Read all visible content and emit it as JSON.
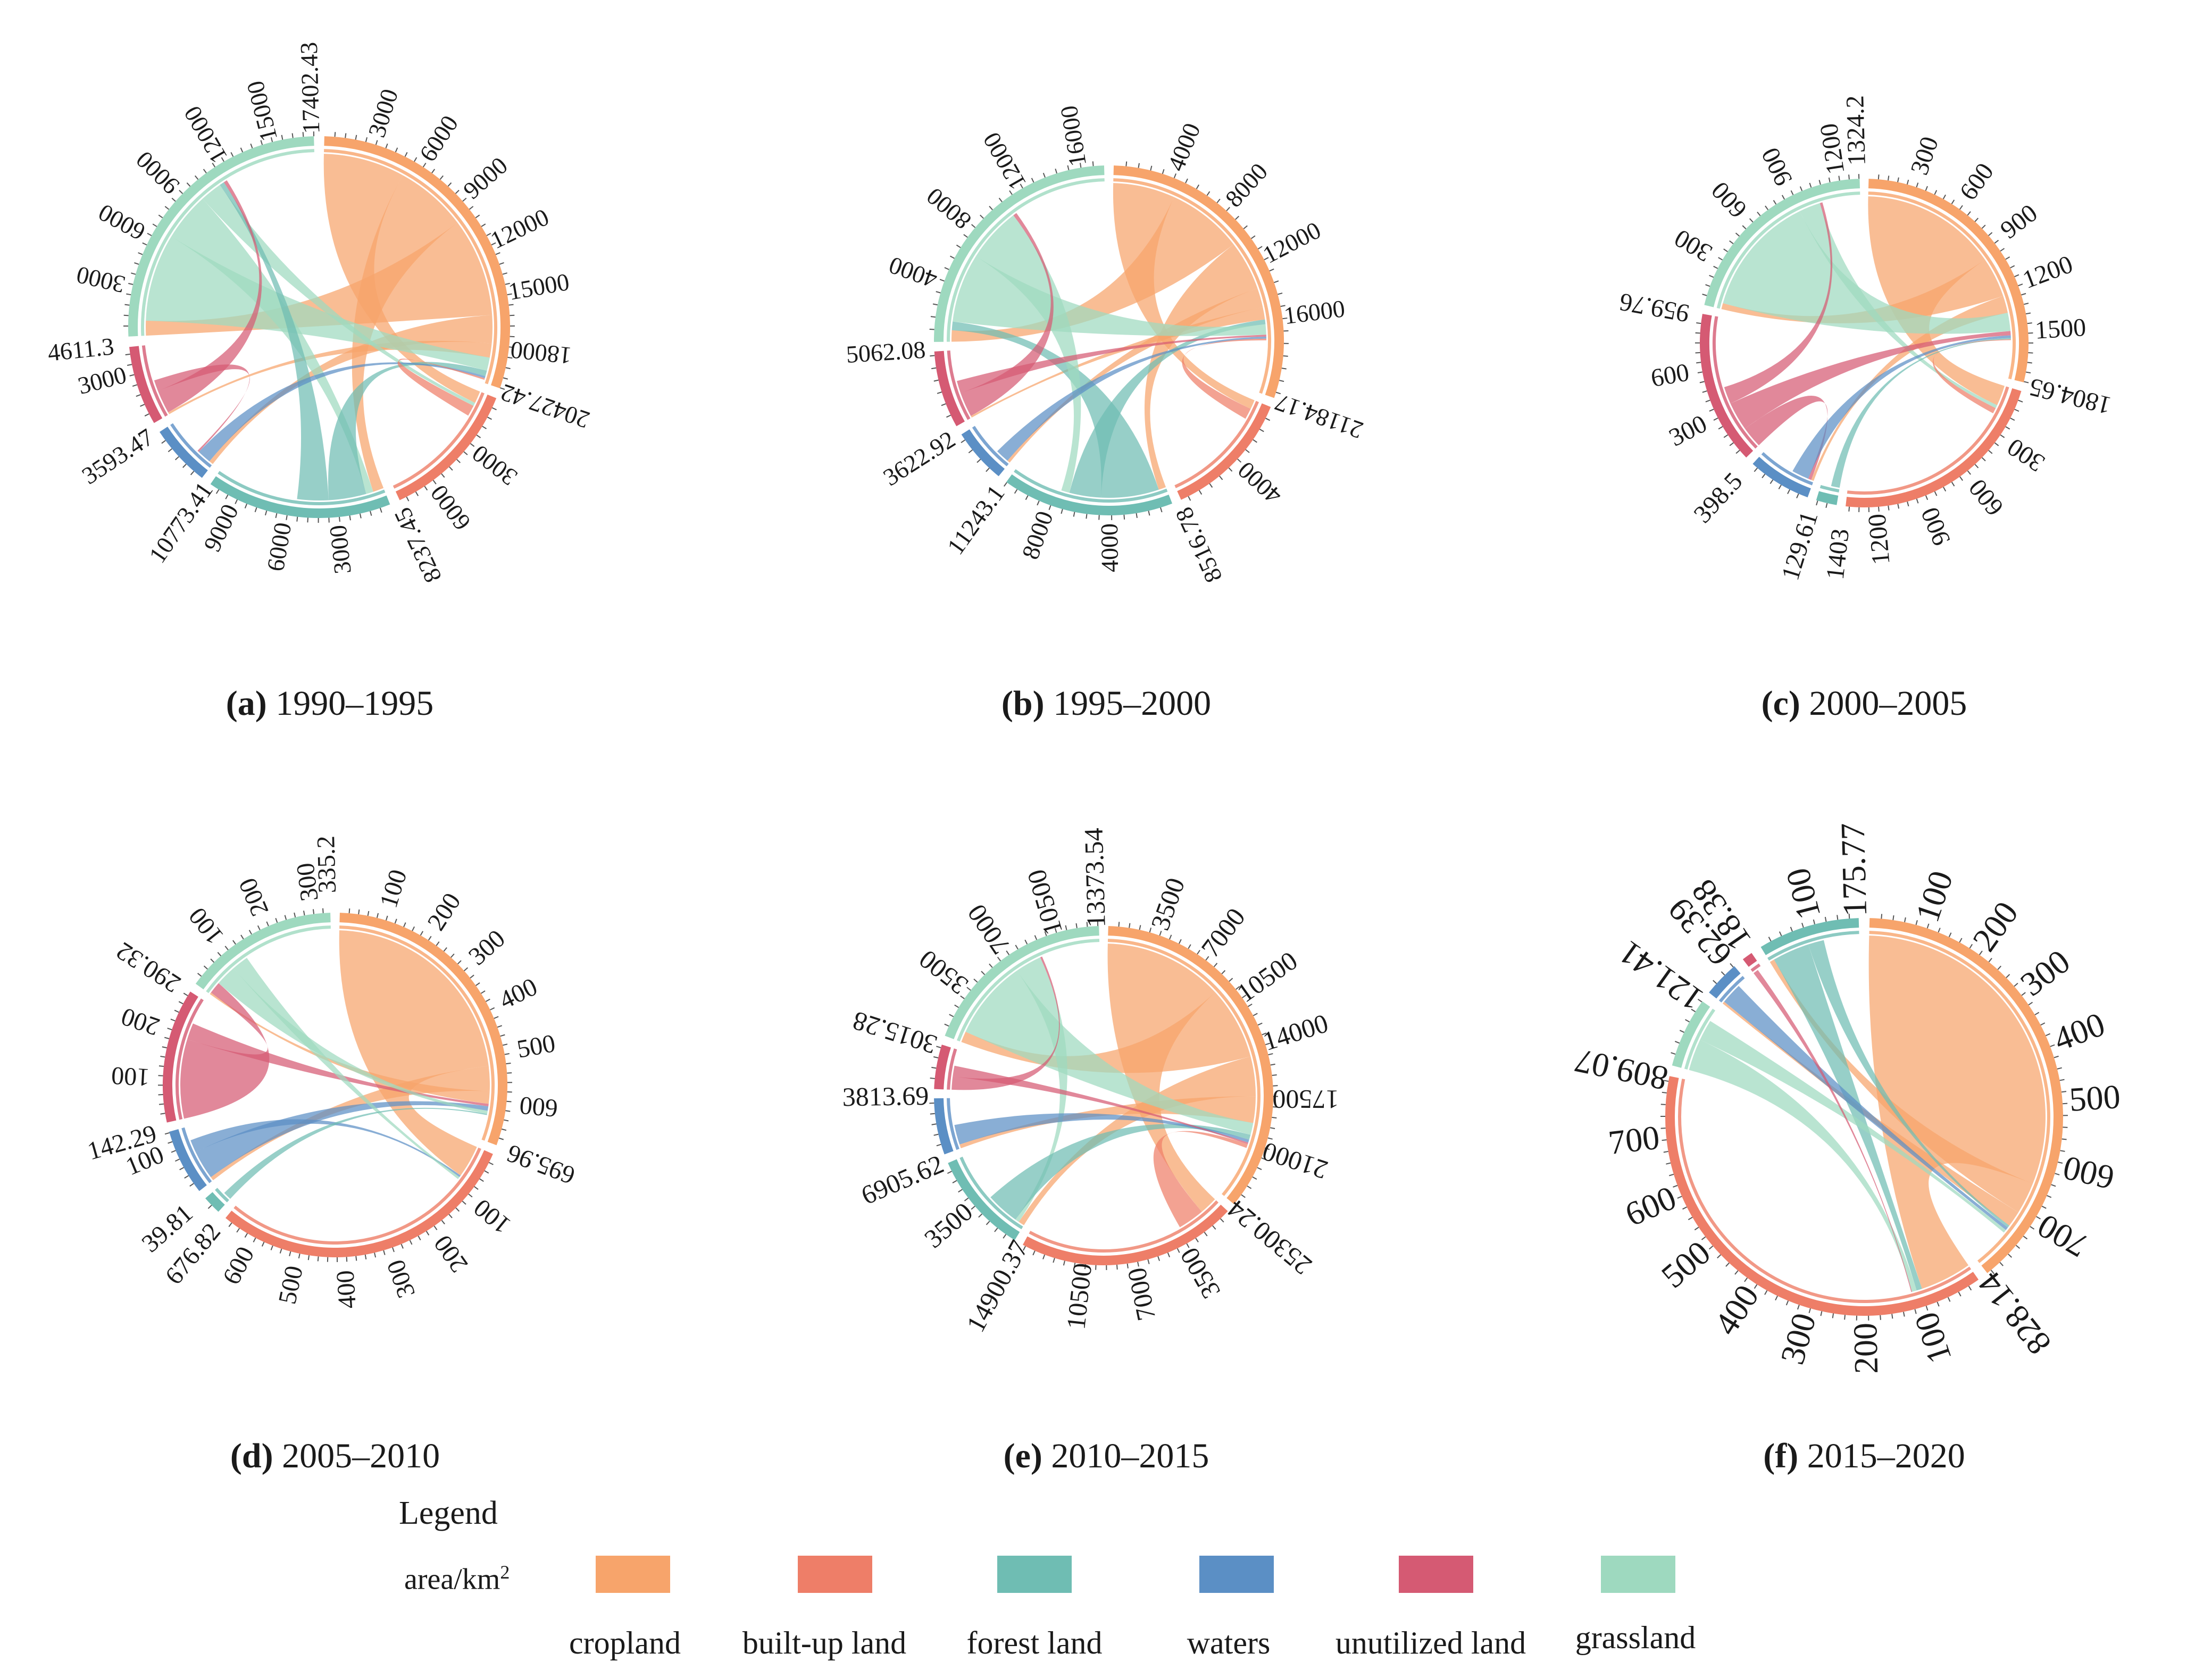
{
  "categories": [
    "cropland",
    "built-up land",
    "forest land",
    "waters",
    "unutilized land",
    "grassland"
  ],
  "colors": {
    "cropland": "#F7A46B",
    "built-up land": "#EE7E68",
    "forest land": "#6FBDB3",
    "waters": "#5B8FC5",
    "unutilized land": "#D55A73",
    "grassland": "#9ED9BF"
  },
  "legend": {
    "title": "Legend",
    "unit_prefix": "area/km",
    "unit_sup": "2"
  },
  "chart_data": [
    {
      "type": "chord",
      "panel": "(a)",
      "period": "1990–1995",
      "order": [
        "cropland",
        "built-up land",
        "forest land",
        "waters",
        "unutilized land",
        "grassland"
      ],
      "totals": [
        20427.42,
        8237.45,
        10773.41,
        3593.47,
        4611.3,
        17402.43
      ],
      "total_labels": [
        "20427.42",
        "8237.45",
        "10773.41",
        "3593.47",
        "4611.3",
        "17402.43"
      ],
      "tick_step": 3000,
      "flows": [
        {
          "from": "cropland",
          "to": "built-up land",
          "value": 5200
        },
        {
          "from": "cropland",
          "to": "forest land",
          "value": 4600
        },
        {
          "from": "cropland",
          "to": "grassland",
          "value": 6300
        },
        {
          "from": "cropland",
          "to": "waters",
          "value": 1800
        },
        {
          "from": "cropland",
          "to": "unutilized land",
          "value": 900
        },
        {
          "from": "grassland",
          "to": "cropland",
          "value": 5600
        },
        {
          "from": "grassland",
          "to": "forest land",
          "value": 3100
        },
        {
          "from": "grassland",
          "to": "built-up land",
          "value": 1400
        },
        {
          "from": "forest land",
          "to": "cropland",
          "value": 2400
        },
        {
          "from": "forest land",
          "to": "grassland",
          "value": 2000
        },
        {
          "from": "waters",
          "to": "cropland",
          "value": 900
        },
        {
          "from": "unutilized land",
          "to": "grassland",
          "value": 1500
        },
        {
          "from": "unutilized land",
          "to": "waters",
          "value": 700
        },
        {
          "from": "built-up land",
          "to": "cropland",
          "value": 700
        }
      ]
    },
    {
      "type": "chord",
      "panel": "(b)",
      "period": "1995–2000",
      "order": [
        "cropland",
        "built-up land",
        "forest land",
        "waters",
        "unutilized land",
        "grassland"
      ],
      "totals": [
        21184.17,
        8516.78,
        11243.1,
        3622.92,
        5062.08,
        17500
      ],
      "total_labels": [
        "21184.17",
        "8516.78",
        "11243.1",
        "3622.92",
        "5062.08",
        ""
      ],
      "tick_step": 4000,
      "flows": [
        {
          "from": "cropland",
          "to": "built-up land",
          "value": 4500
        },
        {
          "from": "cropland",
          "to": "grassland",
          "value": 5500
        },
        {
          "from": "cropland",
          "to": "forest land",
          "value": 3600
        },
        {
          "from": "cropland",
          "to": "waters",
          "value": 1400
        },
        {
          "from": "cropland",
          "to": "unutilized land",
          "value": 900
        },
        {
          "from": "forest land",
          "to": "grassland",
          "value": 4200
        },
        {
          "from": "forest land",
          "to": "cropland",
          "value": 2300
        },
        {
          "from": "grassland",
          "to": "cropland",
          "value": 5000
        },
        {
          "from": "grassland",
          "to": "forest land",
          "value": 4000
        },
        {
          "from": "unutilized land",
          "to": "grassland",
          "value": 1800
        },
        {
          "from": "unutilized land",
          "to": "cropland",
          "value": 900
        },
        {
          "from": "waters",
          "to": "cropland",
          "value": 1000
        },
        {
          "from": "built-up land",
          "to": "cropland",
          "value": 800
        }
      ]
    },
    {
      "type": "chord",
      "panel": "(c)",
      "period": "2000–2005",
      "order": [
        "cropland",
        "built-up land",
        "forest land",
        "waters",
        "unutilized land",
        "grassland"
      ],
      "totals": [
        1804.65,
        1403,
        129.61,
        398.5,
        959.76,
        1324.2
      ],
      "total_labels": [
        "1804.65",
        "1403",
        "129.61",
        "398.5",
        "959.76",
        "1324.2"
      ],
      "tick_step": 300,
      "flows": [
        {
          "from": "cropland",
          "to": "built-up land",
          "value": 950
        },
        {
          "from": "cropland",
          "to": "grassland",
          "value": 280
        },
        {
          "from": "cropland",
          "to": "waters",
          "value": 120
        },
        {
          "from": "grassland",
          "to": "cropland",
          "value": 850
        },
        {
          "from": "grassland",
          "to": "built-up land",
          "value": 150
        },
        {
          "from": "unutilized land",
          "to": "waters",
          "value": 150
        },
        {
          "from": "unutilized land",
          "to": "cropland",
          "value": 200
        },
        {
          "from": "unutilized land",
          "to": "grassland",
          "value": 120
        },
        {
          "from": "waters",
          "to": "cropland",
          "value": 120
        },
        {
          "from": "forest land",
          "to": "cropland",
          "value": 60
        },
        {
          "from": "built-up land",
          "to": "cropland",
          "value": 40
        }
      ]
    },
    {
      "type": "chord",
      "panel": "(d)",
      "period": "2005–2010",
      "order": [
        "cropland",
        "built-up land",
        "forest land",
        "waters",
        "unutilized land",
        "grassland"
      ],
      "totals": [
        695.96,
        676.82,
        39.81,
        142.29,
        290.32,
        335.2
      ],
      "total_labels": [
        "695.96",
        "676.82",
        "39.81",
        "142.29",
        "290.32",
        "335.2"
      ],
      "tick_step": 100,
      "flows": [
        {
          "from": "cropland",
          "to": "built-up land",
          "value": 520
        },
        {
          "from": "cropland",
          "to": "waters",
          "value": 60
        },
        {
          "from": "cropland",
          "to": "grassland",
          "value": 30
        },
        {
          "from": "unutilized land",
          "to": "grassland",
          "value": 190
        },
        {
          "from": "unutilized land",
          "to": "cropland",
          "value": 40
        },
        {
          "from": "waters",
          "to": "cropland",
          "value": 70
        },
        {
          "from": "waters",
          "to": "built-up land",
          "value": 30
        },
        {
          "from": "grassland",
          "to": "cropland",
          "value": 50
        },
        {
          "from": "grassland",
          "to": "built-up land",
          "value": 40
        },
        {
          "from": "forest land",
          "to": "cropland",
          "value": 20
        }
      ]
    },
    {
      "type": "chord",
      "panel": "(e)",
      "period": "2010–2015",
      "order": [
        "cropland",
        "built-up land",
        "forest land",
        "waters",
        "unutilized land",
        "grassland"
      ],
      "totals": [
        25300.24,
        14900.37,
        6905.62,
        3813.69,
        3015.28,
        13373.54
      ],
      "total_labels": [
        "25300.24",
        "14900.37",
        "6905.62",
        "3813.69",
        "3015.28",
        "13373.54"
      ],
      "tick_step": 3500,
      "flows": [
        {
          "from": "cropland",
          "to": "built-up land",
          "value": 9000
        },
        {
          "from": "cropland",
          "to": "grassland",
          "value": 5500
        },
        {
          "from": "cropland",
          "to": "forest land",
          "value": 3000
        },
        {
          "from": "cropland",
          "to": "waters",
          "value": 2000
        },
        {
          "from": "grassland",
          "to": "cropland",
          "value": 6000
        },
        {
          "from": "grassland",
          "to": "forest land",
          "value": 2000
        },
        {
          "from": "forest land",
          "to": "cropland",
          "value": 2500
        },
        {
          "from": "waters",
          "to": "cropland",
          "value": 1500
        },
        {
          "from": "unutilized land",
          "to": "grassland",
          "value": 1000
        },
        {
          "from": "unutilized land",
          "to": "cropland",
          "value": 800
        },
        {
          "from": "built-up land",
          "to": "cropland",
          "value": 2000
        }
      ]
    },
    {
      "type": "chord",
      "panel": "(f)",
      "period": "2015–2020",
      "order": [
        "cropland",
        "built-up land",
        "grassland",
        "waters",
        "unutilized land",
        "forest land"
      ],
      "totals": [
        828.14,
        809.07,
        121.41,
        62.39,
        18.38,
        175.77
      ],
      "total_labels": [
        "828.14",
        "809.07",
        "121.41",
        "62.39",
        "18.38",
        "175.77"
      ],
      "tick_step": 100,
      "flows": [
        {
          "from": "cropland",
          "to": "built-up land",
          "value": 650
        },
        {
          "from": "cropland",
          "to": "forest land",
          "value": 60
        },
        {
          "from": "cropland",
          "to": "waters",
          "value": 30
        },
        {
          "from": "forest land",
          "to": "built-up land",
          "value": 70
        },
        {
          "from": "forest land",
          "to": "cropland",
          "value": 30
        },
        {
          "from": "waters",
          "to": "cropland",
          "value": 40
        },
        {
          "from": "grassland",
          "to": "built-up land",
          "value": 60
        },
        {
          "from": "grassland",
          "to": "cropland",
          "value": 40
        },
        {
          "from": "unutilized land",
          "to": "built-up land",
          "value": 10
        }
      ]
    }
  ]
}
